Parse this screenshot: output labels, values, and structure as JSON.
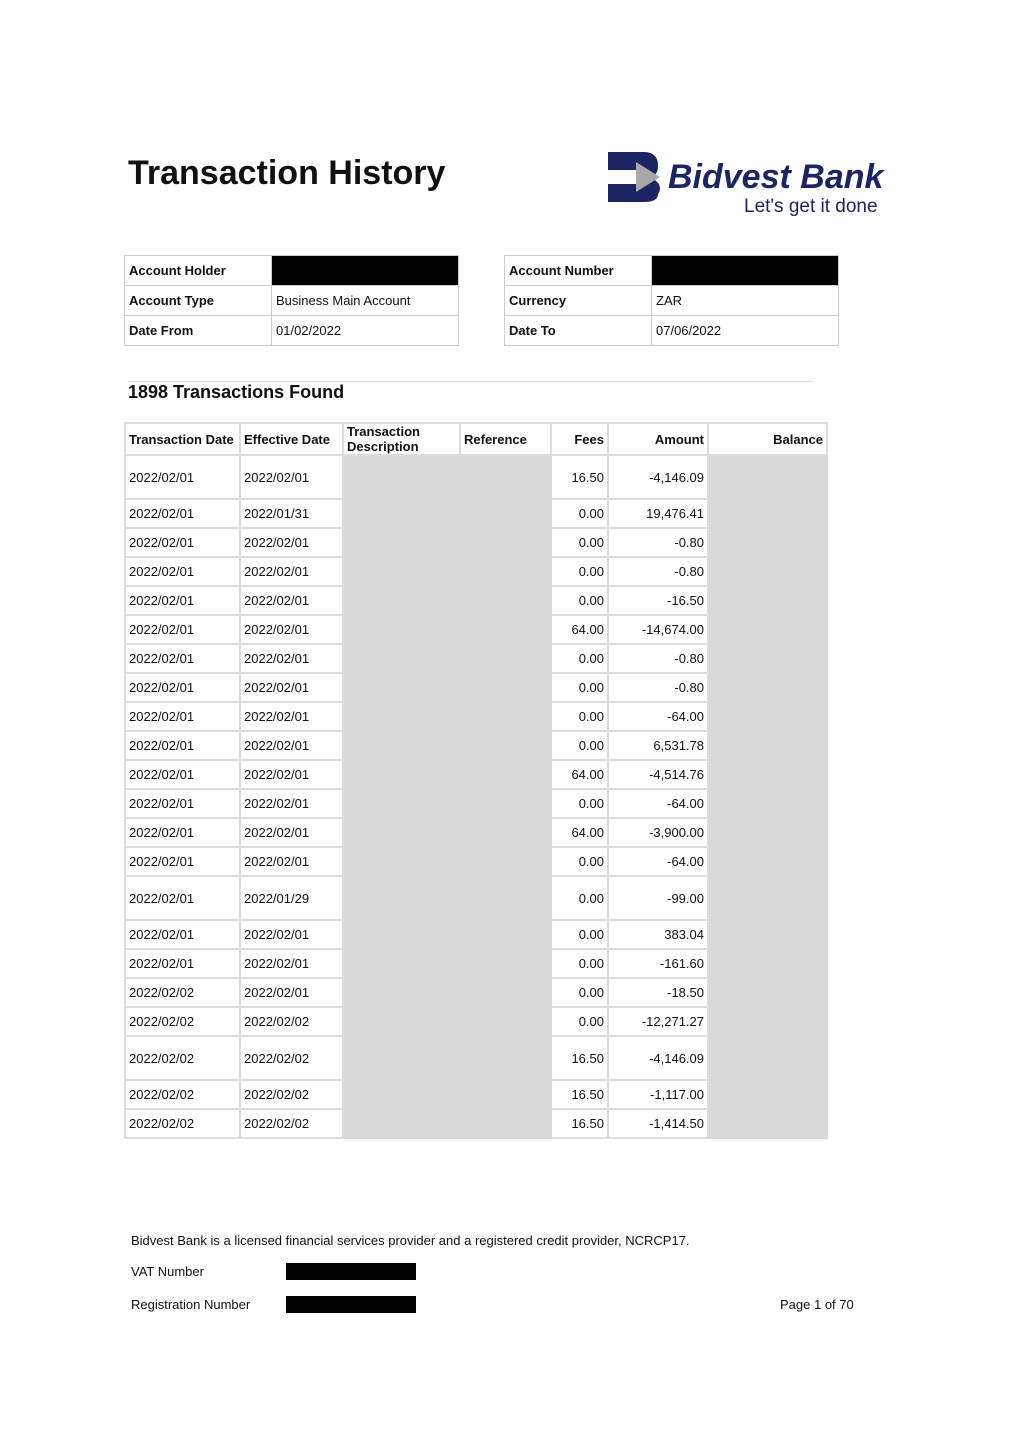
{
  "header": {
    "title": "Transaction History",
    "logo": {
      "name": "Bidvest Bank",
      "tagline": "Let's get it done",
      "colors": {
        "navy": "#1c2463",
        "gray": "#a8a8a8"
      }
    }
  },
  "account_left": [
    {
      "label": "Account Holder",
      "value": "",
      "redacted": true
    },
    {
      "label": "Account Type",
      "value": "Business Main Account"
    },
    {
      "label": "Date From",
      "value": "01/02/2022"
    }
  ],
  "account_right": [
    {
      "label": "Account Number",
      "value": "",
      "redacted": true
    },
    {
      "label": "Currency",
      "value": "ZAR"
    },
    {
      "label": "Date To",
      "value": "07/06/2022"
    }
  ],
  "count": "1898 Transactions Found",
  "columns": [
    "Transaction Date",
    "Effective Date",
    "Transaction Description",
    "Reference",
    "Fees",
    "Amount",
    "Balance"
  ],
  "rows": [
    [
      "2022/02/01",
      "2022/02/01",
      "16.50",
      "-4,146.09",
      1
    ],
    [
      "2022/02/01",
      "2022/01/31",
      "0.00",
      "19,476.41",
      0
    ],
    [
      "2022/02/01",
      "2022/02/01",
      "0.00",
      "-0.80",
      0
    ],
    [
      "2022/02/01",
      "2022/02/01",
      "0.00",
      "-0.80",
      0
    ],
    [
      "2022/02/01",
      "2022/02/01",
      "0.00",
      "-16.50",
      0
    ],
    [
      "2022/02/01",
      "2022/02/01",
      "64.00",
      "-14,674.00",
      0
    ],
    [
      "2022/02/01",
      "2022/02/01",
      "0.00",
      "-0.80",
      0
    ],
    [
      "2022/02/01",
      "2022/02/01",
      "0.00",
      "-0.80",
      0
    ],
    [
      "2022/02/01",
      "2022/02/01",
      "0.00",
      "-64.00",
      0
    ],
    [
      "2022/02/01",
      "2022/02/01",
      "0.00",
      "6,531.78",
      0
    ],
    [
      "2022/02/01",
      "2022/02/01",
      "64.00",
      "-4,514.76",
      0
    ],
    [
      "2022/02/01",
      "2022/02/01",
      "0.00",
      "-64.00",
      0
    ],
    [
      "2022/02/01",
      "2022/02/01",
      "64.00",
      "-3,900.00",
      0
    ],
    [
      "2022/02/01",
      "2022/02/01",
      "0.00",
      "-64.00",
      0
    ],
    [
      "2022/02/01",
      "2022/01/29",
      "0.00",
      "-99.00",
      1
    ],
    [
      "2022/02/01",
      "2022/02/01",
      "0.00",
      "383.04",
      0
    ],
    [
      "2022/02/01",
      "2022/02/01",
      "0.00",
      "-161.60",
      0
    ],
    [
      "2022/02/02",
      "2022/02/01",
      "0.00",
      "-18.50",
      0
    ],
    [
      "2022/02/02",
      "2022/02/02",
      "0.00",
      "-12,271.27",
      0
    ],
    [
      "2022/02/02",
      "2022/02/02",
      "16.50",
      "-4,146.09",
      1
    ],
    [
      "2022/02/02",
      "2022/02/02",
      "16.50",
      "-1,117.00",
      0
    ],
    [
      "2022/02/02",
      "2022/02/02",
      "16.50",
      "-1,414.50",
      0
    ]
  ],
  "footer": {
    "disclaimer": "Bidvest Bank is a licensed financial services provider and a registered credit provider, NCRCP17.",
    "vat_label": "VAT Number",
    "reg_label": "Registration Number",
    "page": "Page 1 of 70"
  }
}
